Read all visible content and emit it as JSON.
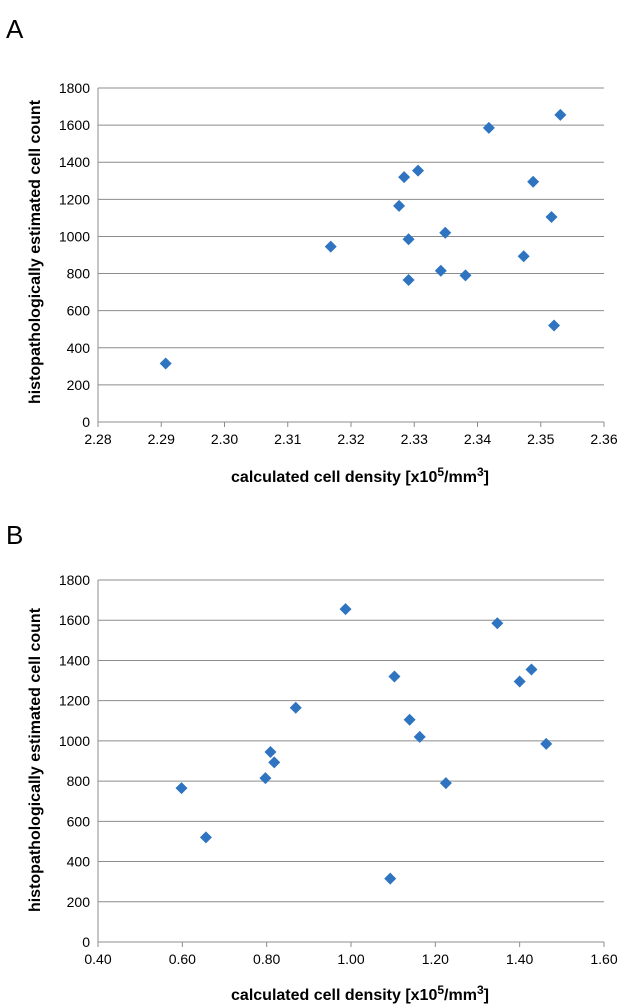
{
  "chart_data": [
    {
      "panel": "A",
      "type": "scatter",
      "xlabel": "calculated cell density [x10",
      "xlabel_sup1": "5",
      "xlabel_mid": "/mm",
      "xlabel_sup2": "3",
      "xlabel_end": "]",
      "ylabel": "histopathologically estimated cell count",
      "xlim": [
        2.28,
        2.36
      ],
      "ylim": [
        0,
        1800
      ],
      "x_ticks": [
        "2.28",
        "2.29",
        "2.30",
        "2.31",
        "2.32",
        "2.33",
        "2.34",
        "2.35",
        "2.36"
      ],
      "y_ticks": [
        "0",
        "200",
        "400",
        "600",
        "800",
        "1000",
        "1200",
        "1400",
        "1600",
        "1800"
      ],
      "grid": "horizontal",
      "marker_color": "#2e74c0",
      "points": [
        {
          "x": 2.2907,
          "y": 315
        },
        {
          "x": 2.3168,
          "y": 945
        },
        {
          "x": 2.3276,
          "y": 1165
        },
        {
          "x": 2.3284,
          "y": 1320
        },
        {
          "x": 2.3306,
          "y": 1355
        },
        {
          "x": 2.3291,
          "y": 985
        },
        {
          "x": 2.3291,
          "y": 765
        },
        {
          "x": 2.3342,
          "y": 815
        },
        {
          "x": 2.3349,
          "y": 1020
        },
        {
          "x": 2.3381,
          "y": 790
        },
        {
          "x": 2.3418,
          "y": 1585
        },
        {
          "x": 2.3473,
          "y": 893
        },
        {
          "x": 2.3488,
          "y": 1295
        },
        {
          "x": 2.3517,
          "y": 1105
        },
        {
          "x": 2.3521,
          "y": 520
        },
        {
          "x": 2.3531,
          "y": 1655
        }
      ]
    },
    {
      "panel": "B",
      "type": "scatter",
      "xlabel": "calculated cell density [x10",
      "xlabel_sup1": "5",
      "xlabel_mid": "/mm",
      "xlabel_sup2": "3",
      "xlabel_end": "]",
      "ylabel": "histopathologically estimated cell count",
      "xlim": [
        0.4,
        1.6
      ],
      "ylim": [
        0,
        1800
      ],
      "x_ticks": [
        "0.40",
        "0.60",
        "0.80",
        "1.00",
        "1.20",
        "1.40",
        "1.60"
      ],
      "y_ticks": [
        "0",
        "200",
        "400",
        "600",
        "800",
        "1000",
        "1200",
        "1400",
        "1600",
        "1800"
      ],
      "grid": "horizontal",
      "marker_color": "#2e74c0",
      "points": [
        {
          "x": 0.598,
          "y": 765
        },
        {
          "x": 0.656,
          "y": 520
        },
        {
          "x": 0.797,
          "y": 815
        },
        {
          "x": 0.809,
          "y": 945
        },
        {
          "x": 0.818,
          "y": 893
        },
        {
          "x": 0.869,
          "y": 1165
        },
        {
          "x": 0.987,
          "y": 1655
        },
        {
          "x": 1.093,
          "y": 315
        },
        {
          "x": 1.103,
          "y": 1320
        },
        {
          "x": 1.139,
          "y": 1105
        },
        {
          "x": 1.163,
          "y": 1020
        },
        {
          "x": 1.225,
          "y": 790
        },
        {
          "x": 1.347,
          "y": 1585
        },
        {
          "x": 1.4,
          "y": 1295
        },
        {
          "x": 1.428,
          "y": 1355
        },
        {
          "x": 1.463,
          "y": 985
        }
      ]
    }
  ]
}
